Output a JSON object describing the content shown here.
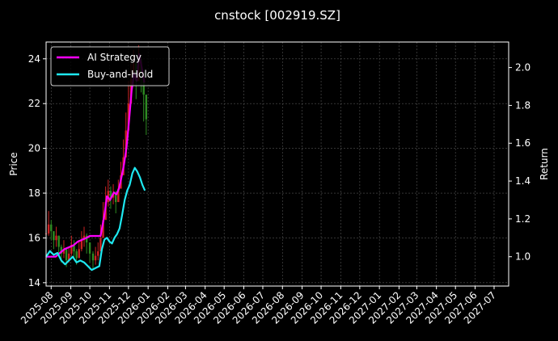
{
  "chart_data": {
    "type": "line",
    "title": "cnstock [002919.SZ]",
    "ylabel": "Price",
    "y2label": "Return",
    "xlim": [
      "2025-07-24",
      "2027-07-24"
    ],
    "ylim": [
      13.85,
      24.75
    ],
    "y2lim": [
      0.845,
      2.135
    ],
    "grid": true,
    "legend": {
      "placement": "top-left",
      "entries": [
        "AI Strategy",
        "Buy-and-Hold"
      ]
    },
    "x_ticks": [
      "2025-08",
      "2025-09",
      "2025-10",
      "2025-11",
      "2025-12",
      "2026-01",
      "2026-02",
      "2026-03",
      "2026-04",
      "2026-05",
      "2026-06",
      "2026-07",
      "2026-08",
      "2026-09",
      "2026-10",
      "2026-11",
      "2026-12",
      "2027-01",
      "2027-02",
      "2027-03",
      "2027-04",
      "2027-05",
      "2027-06",
      "2027-07"
    ],
    "y_ticks": [
      "14",
      "16",
      "18",
      "20",
      "22",
      "24"
    ],
    "y2_ticks": [
      "1.0",
      "1.2",
      "1.4",
      "1.6",
      "1.8",
      "2.0"
    ],
    "colors": {
      "up": "#cc2222",
      "down": "#2e8b22",
      "ai": "#ff00ff",
      "bh": "#1ee8f0",
      "grid": "#555555",
      "axis": "#ffffff"
    },
    "price_series": {
      "dates": [
        "2025-07-24",
        "2025-07-28",
        "2025-08-01",
        "2025-08-05",
        "2025-08-09",
        "2025-08-13",
        "2025-08-17",
        "2025-08-21",
        "2025-08-25",
        "2025-08-29",
        "2025-09-02",
        "2025-09-06",
        "2025-09-10",
        "2025-09-14",
        "2025-09-18",
        "2025-09-22",
        "2025-09-26",
        "2025-10-01",
        "2025-10-06",
        "2025-10-10",
        "2025-10-14",
        "2025-10-18",
        "2025-10-22",
        "2025-10-26",
        "2025-10-30",
        "2025-11-03",
        "2025-11-07",
        "2025-11-11",
        "2025-11-15",
        "2025-11-19",
        "2025-11-23",
        "2025-11-27",
        "2025-12-01",
        "2025-12-05",
        "2025-12-09",
        "2025-12-13",
        "2025-12-17",
        "2025-12-21",
        "2025-12-25",
        "2025-12-29"
      ],
      "close": [
        16.2,
        16.6,
        16.3,
        15.9,
        16.1,
        15.6,
        15.3,
        15.5,
        15.0,
        15.3,
        15.7,
        15.4,
        15.1,
        15.5,
        15.9,
        16.1,
        15.8,
        15.3,
        15.0,
        15.2,
        15.4,
        16.0,
        16.8,
        17.6,
        18.1,
        17.8,
        18.0,
        17.6,
        18.2,
        18.8,
        19.6,
        20.8,
        22.0,
        23.1,
        23.8,
        23.0,
        24.0,
        23.4,
        22.4,
        21.3
      ],
      "high": [
        16.6,
        17.2,
        16.8,
        16.3,
        16.5,
        16.1,
        15.7,
        15.9,
        15.5,
        15.6,
        16.1,
        15.9,
        15.5,
        15.9,
        16.3,
        16.5,
        16.2,
        15.8,
        15.4,
        15.6,
        15.8,
        16.6,
        17.6,
        18.3,
        18.6,
        18.3,
        18.4,
        18.1,
        18.6,
        19.4,
        20.4,
        21.6,
        23.0,
        23.8,
        24.4,
        23.8,
        24.6,
        24.0,
        23.2,
        22.2
      ],
      "low": [
        15.9,
        16.1,
        15.9,
        15.5,
        15.6,
        15.2,
        14.9,
        15.1,
        14.7,
        14.9,
        15.2,
        15.0,
        14.8,
        15.1,
        15.4,
        15.6,
        15.3,
        14.9,
        14.6,
        14.8,
        15.0,
        15.5,
        16.2,
        16.9,
        17.4,
        17.3,
        17.5,
        17.1,
        17.7,
        18.2,
        18.9,
        19.9,
        21.0,
        22.2,
        22.8,
        22.2,
        23.1,
        22.5,
        21.2,
        20.6
      ]
    },
    "series": [
      {
        "name": "AI Strategy",
        "dates": [
          "2025-07-24",
          "2025-08-01",
          "2025-08-08",
          "2025-08-15",
          "2025-08-22",
          "2025-08-29",
          "2025-09-05",
          "2025-09-12",
          "2025-09-19",
          "2025-09-26",
          "2025-10-01",
          "2025-10-10",
          "2025-10-18",
          "2025-10-24",
          "2025-10-28",
          "2025-11-02",
          "2025-11-08",
          "2025-11-12",
          "2025-11-16",
          "2025-11-20",
          "2025-11-24",
          "2025-11-28",
          "2025-12-02",
          "2025-12-06",
          "2025-12-10",
          "2025-12-14",
          "2025-12-18",
          "2025-12-22",
          "2025-12-26"
        ],
        "values": [
          1.0,
          1.0,
          1.0,
          1.02,
          1.04,
          1.05,
          1.06,
          1.08,
          1.09,
          1.1,
          1.11,
          1.11,
          1.11,
          1.22,
          1.32,
          1.3,
          1.34,
          1.33,
          1.36,
          1.42,
          1.49,
          1.58,
          1.72,
          1.88,
          1.97,
          1.93,
          2.07,
          2.0,
          1.92
        ]
      },
      {
        "name": "Buy-and-Hold",
        "dates": [
          "2025-07-24",
          "2025-07-30",
          "2025-08-05",
          "2025-08-11",
          "2025-08-17",
          "2025-08-23",
          "2025-08-29",
          "2025-09-04",
          "2025-09-10",
          "2025-09-16",
          "2025-09-22",
          "2025-09-28",
          "2025-10-04",
          "2025-10-10",
          "2025-10-16",
          "2025-10-20",
          "2025-10-24",
          "2025-10-28",
          "2025-11-01",
          "2025-11-05",
          "2025-11-09",
          "2025-11-13",
          "2025-11-17",
          "2025-11-21",
          "2025-11-25",
          "2025-11-29",
          "2025-12-03",
          "2025-12-07",
          "2025-12-11",
          "2025-12-15",
          "2025-12-19",
          "2025-12-23",
          "2025-12-27"
        ],
        "values": [
          1.0,
          1.03,
          1.01,
          1.02,
          0.98,
          0.96,
          0.98,
          1.0,
          0.97,
          0.98,
          0.97,
          0.95,
          0.93,
          0.94,
          0.95,
          1.04,
          1.09,
          1.1,
          1.08,
          1.07,
          1.1,
          1.12,
          1.15,
          1.22,
          1.3,
          1.35,
          1.38,
          1.44,
          1.47,
          1.45,
          1.42,
          1.38,
          1.35
        ]
      }
    ]
  }
}
